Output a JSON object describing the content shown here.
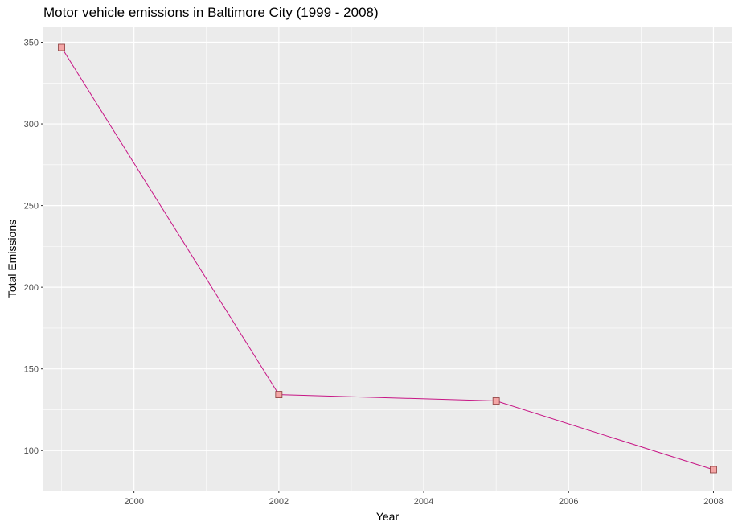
{
  "chart_data": {
    "type": "line",
    "title": "Motor vehicle emissions in Baltimore City (1999 - 2008)",
    "xlabel": "Year",
    "ylabel": "Total Emissions",
    "x": [
      1999,
      2002,
      2005,
      2008
    ],
    "series": [
      {
        "values": [
          346.8,
          134.3,
          130.4,
          88.3
        ]
      }
    ],
    "xlim": [
      1998.75,
      2008.25
    ],
    "ylim": [
      75.5,
      359.6
    ],
    "xticks": [
      2000,
      2002,
      2004,
      2006,
      2008
    ],
    "yticks": [
      100,
      150,
      200,
      250,
      300,
      350
    ],
    "grid": true,
    "colors": {
      "panel_background": "#EBEBEB",
      "grid": "#FFFFFF",
      "line": "#C71585",
      "marker_fill": "#F4A6A6",
      "marker_stroke": "#8B3A3A"
    }
  }
}
